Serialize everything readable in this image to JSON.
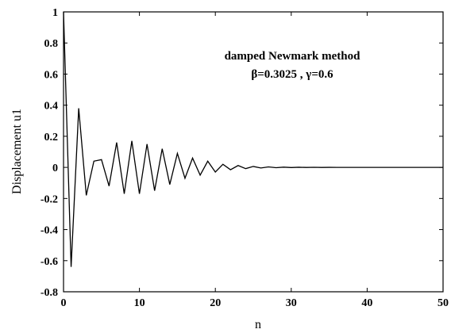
{
  "chart_data": {
    "type": "line",
    "title": "",
    "xlabel": "n",
    "ylabel": "Displacement  u1",
    "xlim": [
      0,
      50
    ],
    "ylim": [
      -0.8,
      1
    ],
    "xticks": [
      0,
      10,
      20,
      30,
      40,
      50
    ],
    "xtick_labels": [
      "0",
      "10",
      "20",
      "30",
      "40",
      "50"
    ],
    "yticks": [
      -0.8,
      -0.6,
      -0.4,
      -0.2,
      0,
      0.2,
      0.4,
      0.6,
      0.8,
      1
    ],
    "ytick_labels": [
      "-0.8",
      "-0.6",
      "-0.4",
      "-0.2",
      "0",
      "0.2",
      "0.4",
      "0.6",
      "0.8",
      "1"
    ],
    "grid": false,
    "annotations": [
      "damped Newmark method",
      "β=0.3025 , γ=0.6"
    ],
    "series": [
      {
        "color": "#000000",
        "x": [
          0,
          1,
          2,
          3,
          4,
          5,
          6,
          7,
          8,
          9,
          10,
          11,
          12,
          13,
          14,
          15,
          16,
          17,
          18,
          19,
          20,
          21,
          22,
          23,
          24,
          25,
          26,
          27,
          28,
          29,
          30,
          31,
          32,
          33,
          34,
          35,
          36,
          37,
          38,
          39,
          40,
          41,
          42,
          43,
          44,
          45,
          46,
          47,
          48,
          49,
          50
        ],
        "y": [
          1,
          -0.64,
          0.38,
          -0.18,
          0.04,
          0.05,
          -0.12,
          0.16,
          -0.17,
          0.17,
          -0.17,
          0.15,
          -0.15,
          0.12,
          -0.11,
          0.09,
          -0.07,
          0.06,
          -0.05,
          0.04,
          -0.03,
          0.02,
          -0.015,
          0.012,
          -0.008,
          0.006,
          -0.004,
          0.003,
          -0.002,
          0.0015,
          -0.001,
          0.0008,
          -0.0005,
          0.0004,
          -0.0003,
          0.0002,
          -0.0001,
          0,
          0,
          0,
          0,
          0,
          0,
          0,
          0,
          0,
          0,
          0,
          0,
          0,
          0
        ]
      }
    ]
  }
}
